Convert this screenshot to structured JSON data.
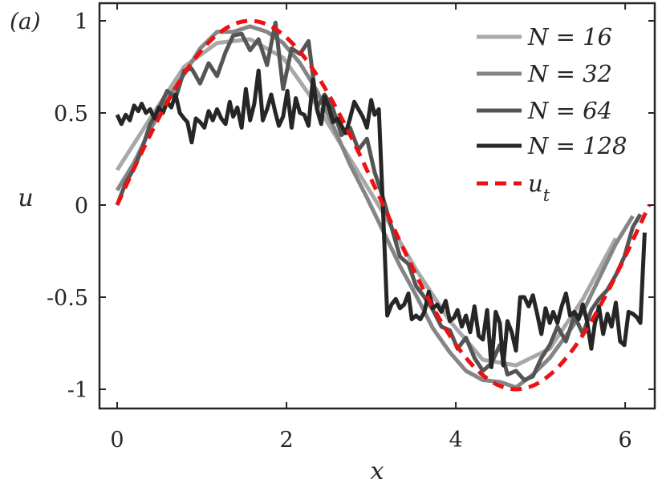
{
  "chart_data": {
    "type": "line",
    "panel_label": "(a)",
    "xlabel": "x",
    "ylabel": "u",
    "xlim": [
      -0.1,
      6.3
    ],
    "ylim": [
      -1.1,
      1.1
    ],
    "x_ticks": [
      0,
      2,
      4,
      6
    ],
    "x_tick_labels": [
      "0",
      "2",
      "4",
      "6"
    ],
    "y_ticks": [
      1,
      0.5,
      0,
      -0.5,
      -1
    ],
    "y_tick_labels": [
      "1",
      "0.5",
      "0",
      "-0.5",
      "-1"
    ],
    "grid": false,
    "legend_position": "top-right",
    "series": [
      {
        "name": "N = 16",
        "color": "#a8a8a8",
        "style": "solid",
        "x": [
          0.0,
          0.39,
          0.79,
          1.18,
          1.57,
          1.96,
          2.36,
          2.75,
          3.14,
          3.53,
          3.93,
          4.32,
          4.71,
          5.11,
          5.5,
          5.89
        ],
        "y": [
          0.19,
          0.47,
          0.75,
          0.88,
          0.9,
          0.8,
          0.54,
          0.25,
          -0.04,
          -0.35,
          -0.63,
          -0.84,
          -0.87,
          -0.78,
          -0.51,
          -0.18
        ]
      },
      {
        "name": "N = 32",
        "color": "#858585",
        "style": "solid",
        "x": [
          0.0,
          0.2,
          0.39,
          0.59,
          0.79,
          0.98,
          1.18,
          1.37,
          1.57,
          1.77,
          1.96,
          2.16,
          2.36,
          2.55,
          2.75,
          2.95,
          3.14,
          3.34,
          3.53,
          3.73,
          3.93,
          4.12,
          4.32,
          4.52,
          4.71,
          4.91,
          5.11,
          5.3,
          5.5,
          5.69,
          5.89,
          6.09
        ],
        "y": [
          0.08,
          0.23,
          0.41,
          0.57,
          0.71,
          0.85,
          0.94,
          0.94,
          0.97,
          0.94,
          0.88,
          0.77,
          0.62,
          0.43,
          0.22,
          0.04,
          -0.14,
          -0.33,
          -0.49,
          -0.67,
          -0.8,
          -0.9,
          -0.95,
          -0.96,
          -0.99,
          -0.92,
          -0.83,
          -0.71,
          -0.58,
          -0.4,
          -0.21,
          -0.06
        ]
      },
      {
        "name": "N = 64",
        "color": "#555555",
        "style": "solid",
        "x": [
          0.0,
          0.1,
          0.2,
          0.29,
          0.39,
          0.49,
          0.59,
          0.69,
          0.79,
          0.88,
          0.98,
          1.08,
          1.18,
          1.28,
          1.37,
          1.47,
          1.57,
          1.67,
          1.77,
          1.87,
          1.96,
          2.06,
          2.16,
          2.26,
          2.36,
          2.45,
          2.55,
          2.65,
          2.75,
          2.85,
          2.95,
          3.04,
          3.14,
          3.24,
          3.34,
          3.44,
          3.53,
          3.63,
          3.73,
          3.83,
          3.93,
          4.02,
          4.12,
          4.22,
          4.32,
          4.42,
          4.52,
          4.61,
          4.71,
          4.81,
          4.91,
          5.01,
          5.11,
          5.2,
          5.3,
          5.4,
          5.5,
          5.6,
          5.69,
          5.79,
          5.89,
          5.99,
          6.09,
          6.18
        ],
        "y": [
          0.0,
          0.12,
          0.2,
          0.3,
          0.44,
          0.52,
          0.62,
          0.58,
          0.73,
          0.74,
          0.66,
          0.77,
          0.7,
          0.83,
          0.92,
          0.93,
          0.84,
          0.9,
          0.76,
          0.99,
          0.63,
          0.85,
          0.82,
          0.89,
          0.53,
          0.6,
          0.52,
          0.38,
          0.42,
          0.3,
          0.36,
          0.18,
          0.04,
          -0.12,
          -0.28,
          -0.32,
          -0.44,
          -0.5,
          -0.57,
          -0.66,
          -0.68,
          -0.78,
          -0.72,
          -0.83,
          -0.9,
          -0.86,
          -0.76,
          -0.92,
          -0.9,
          -0.95,
          -0.93,
          -0.83,
          -0.76,
          -0.66,
          -0.74,
          -0.6,
          -0.7,
          -0.57,
          -0.51,
          -0.46,
          -0.38,
          -0.28,
          -0.12,
          -0.05
        ]
      },
      {
        "name": "N = 128",
        "color": "#262626",
        "style": "solid",
        "x": [
          0.0,
          0.05,
          0.1,
          0.15,
          0.2,
          0.25,
          0.29,
          0.34,
          0.39,
          0.44,
          0.49,
          0.54,
          0.59,
          0.64,
          0.69,
          0.74,
          0.79,
          0.83,
          0.88,
          0.93,
          0.98,
          1.03,
          1.08,
          1.13,
          1.18,
          1.23,
          1.28,
          1.33,
          1.37,
          1.42,
          1.47,
          1.52,
          1.57,
          1.62,
          1.67,
          1.72,
          1.77,
          1.82,
          1.87,
          1.91,
          1.96,
          2.01,
          2.06,
          2.11,
          2.16,
          2.21,
          2.26,
          2.31,
          2.36,
          2.41,
          2.45,
          2.5,
          2.55,
          2.6,
          2.65,
          2.7,
          2.75,
          2.8,
          2.85,
          2.9,
          2.95,
          3.0,
          3.04,
          3.09,
          3.14,
          3.19,
          3.24,
          3.29,
          3.34,
          3.39,
          3.44,
          3.48,
          3.53,
          3.58,
          3.63,
          3.68,
          3.73,
          3.78,
          3.83,
          3.88,
          3.93,
          3.98,
          4.02,
          4.07,
          4.12,
          4.17,
          4.22,
          4.27,
          4.32,
          4.37,
          4.42,
          4.47,
          4.52,
          4.56,
          4.61,
          4.66,
          4.71,
          4.76,
          4.81,
          4.86,
          4.91,
          4.96,
          5.01,
          5.06,
          5.11,
          5.15,
          5.2,
          5.25,
          5.3,
          5.35,
          5.4,
          5.45,
          5.5,
          5.55,
          5.6,
          5.64,
          5.69,
          5.74,
          5.79,
          5.84,
          5.89,
          5.94,
          5.99,
          6.04,
          6.09,
          6.14,
          6.18,
          6.23
        ],
        "y": [
          0.49,
          0.44,
          0.49,
          0.46,
          0.54,
          0.51,
          0.55,
          0.5,
          0.52,
          0.47,
          0.53,
          0.5,
          0.56,
          0.53,
          0.6,
          0.5,
          0.47,
          0.45,
          0.34,
          0.47,
          0.45,
          0.42,
          0.51,
          0.46,
          0.52,
          0.47,
          0.44,
          0.56,
          0.48,
          0.53,
          0.42,
          0.63,
          0.46,
          0.55,
          0.73,
          0.46,
          0.52,
          0.6,
          0.5,
          0.43,
          0.48,
          0.62,
          0.42,
          0.58,
          0.5,
          0.49,
          0.43,
          0.68,
          0.52,
          0.44,
          0.59,
          0.53,
          0.45,
          0.47,
          0.43,
          0.39,
          0.47,
          0.56,
          0.52,
          0.48,
          0.42,
          0.57,
          0.49,
          0.52,
          -0.02,
          -0.6,
          -0.54,
          -0.51,
          -0.56,
          -0.54,
          -0.48,
          -0.62,
          -0.6,
          -0.62,
          -0.58,
          -0.47,
          -0.56,
          -0.54,
          -0.58,
          -0.52,
          -0.63,
          -0.61,
          -0.57,
          -0.66,
          -0.6,
          -0.69,
          -0.55,
          -0.71,
          -0.73,
          -0.57,
          -0.88,
          -0.58,
          -0.64,
          -0.87,
          -0.63,
          -0.69,
          -0.79,
          -0.5,
          -0.5,
          -0.55,
          -0.49,
          -0.59,
          -0.7,
          -0.56,
          -0.64,
          -0.58,
          -0.64,
          -0.55,
          -0.48,
          -0.6,
          -0.58,
          -0.62,
          -0.54,
          -0.63,
          -0.78,
          -0.65,
          -0.55,
          -0.7,
          -0.59,
          -0.66,
          -0.53,
          -0.74,
          -0.76,
          -0.58,
          -0.59,
          -0.61,
          -0.64,
          -0.15
        ]
      },
      {
        "name": "u_t",
        "color": "#ee1111",
        "style": "dashed",
        "fn": "sin",
        "x_range": [
          0,
          6.2832
        ]
      }
    ]
  }
}
